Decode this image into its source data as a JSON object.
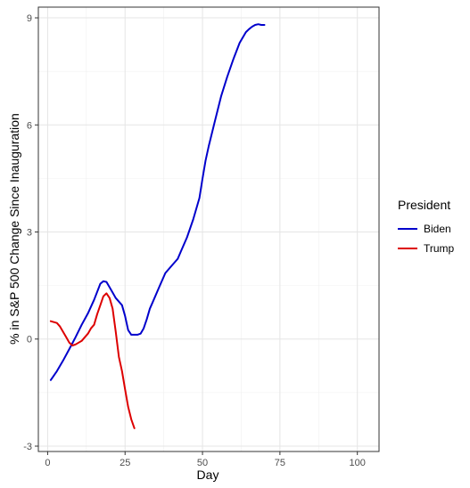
{
  "chart_data": {
    "type": "line",
    "xlabel": "Day",
    "ylabel": "% in S&P 500 Change Since Inauguration",
    "xlim": [
      -3,
      107
    ],
    "ylim": [
      -3.15,
      9.3
    ],
    "x_ticks": [
      0,
      25,
      50,
      75,
      100
    ],
    "x_tick_labels": [
      "0",
      "25",
      "50",
      "75",
      "100"
    ],
    "y_ticks": [
      -3,
      0,
      3,
      6,
      9
    ],
    "y_tick_labels": [
      "-3",
      "0",
      "3",
      "6",
      "9"
    ],
    "grid": true,
    "legend": {
      "title": "President",
      "placement": "right",
      "entries": [
        "Biden",
        "Trump"
      ]
    },
    "series": [
      {
        "name": "Biden",
        "color": "#0000cc",
        "x": [
          1,
          3,
          5,
          7,
          9,
          11,
          13,
          15,
          17,
          18,
          19,
          20,
          22,
          24,
          25,
          26,
          27,
          28,
          29,
          30,
          31,
          32,
          33,
          34,
          36,
          38,
          40,
          42,
          43,
          45,
          47,
          49,
          50,
          51,
          52,
          54,
          56,
          58,
          60,
          62,
          64,
          65,
          66,
          67,
          68,
          69,
          70
        ],
        "y": [
          -1.15,
          -0.9,
          -0.6,
          -0.28,
          0.05,
          0.4,
          0.72,
          1.1,
          1.55,
          1.62,
          1.6,
          1.45,
          1.15,
          0.95,
          0.65,
          0.25,
          0.12,
          0.12,
          0.12,
          0.15,
          0.3,
          0.55,
          0.85,
          1.05,
          1.45,
          1.85,
          2.05,
          2.25,
          2.45,
          2.85,
          3.35,
          3.95,
          4.5,
          5.0,
          5.4,
          6.1,
          6.8,
          7.35,
          7.85,
          8.3,
          8.6,
          8.68,
          8.75,
          8.8,
          8.82,
          8.8,
          8.8
        ]
      },
      {
        "name": "Trump",
        "color": "#dd0000",
        "x": [
          1,
          3,
          4,
          5,
          6,
          7,
          8,
          9,
          10,
          11,
          12,
          13,
          14,
          15,
          16,
          17,
          18,
          19,
          20,
          21,
          22,
          23,
          24,
          25,
          26,
          27,
          28
        ],
        "y": [
          0.5,
          0.45,
          0.35,
          0.2,
          0.05,
          -0.1,
          -0.18,
          -0.15,
          -0.1,
          -0.05,
          0.05,
          0.15,
          0.3,
          0.4,
          0.7,
          0.95,
          1.2,
          1.28,
          1.15,
          0.85,
          0.2,
          -0.5,
          -0.9,
          -1.4,
          -1.9,
          -2.25,
          -2.5
        ]
      }
    ]
  }
}
